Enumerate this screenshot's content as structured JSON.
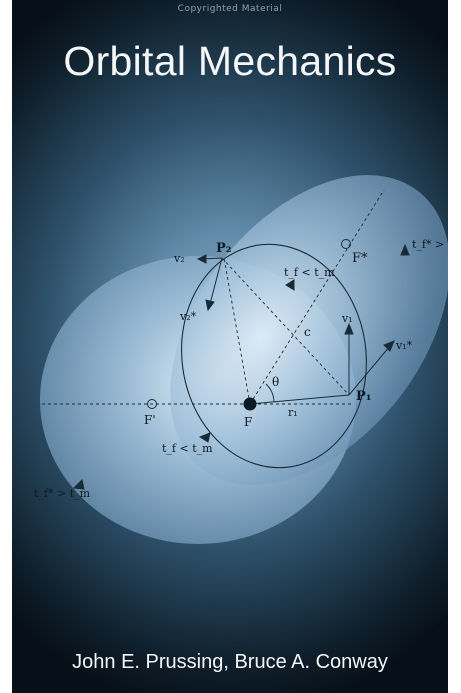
{
  "watermark": "Copyrighted Material",
  "title": "Orbital Mechanics",
  "authors": "John E. Prussing, Bruce A. Conway",
  "diagram_labels": {
    "p2": "P₂",
    "p1": "P₁",
    "f": "F",
    "f_star": "F*",
    "f_prime": "F'",
    "c": "c",
    "theta": "θ",
    "r1": "r₁",
    "v1": "v₁",
    "v1_star": "v₁*",
    "v2_top": "v₂",
    "v2_star": "v₂*",
    "tf_lt_tm_upper": "t_f < t_m",
    "tf_lt_tm_lower": "t_f < t_m",
    "tf_gt_tm_right": "t_f* > t_m",
    "tf_gt_tm_left": "t_f* > t_m"
  },
  "colors": {
    "cover_dark": "#071018",
    "ellipse_light": "#c9dff0",
    "ink": "#0d1a24",
    "title": "#f4f6f8"
  }
}
